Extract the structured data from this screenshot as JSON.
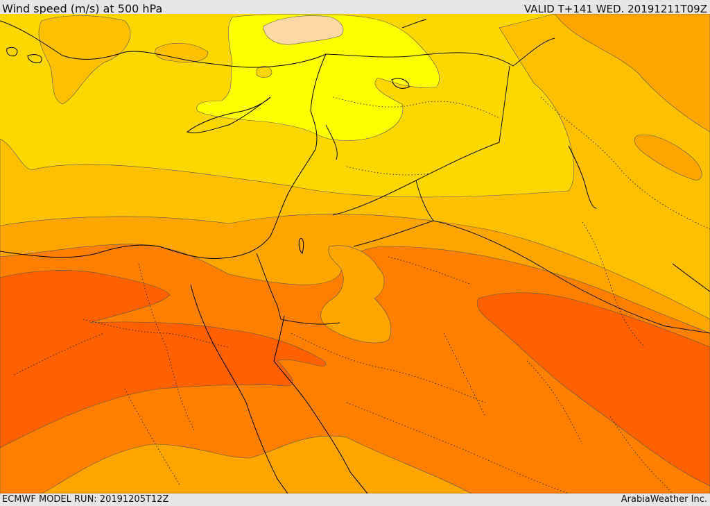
{
  "header": {
    "title": "Wind speed (m/s) at 500 hPa",
    "valid": "VALID T+141 WED. 20191211T09Z"
  },
  "footer": {
    "model_run": "ECMWF MODEL RUN: 20191205T12Z",
    "credit": "ArabiaWeather Inc."
  },
  "colors": {
    "band_pale": "#fcd9a4",
    "band_yellow": "#ffff00",
    "band_gold": "#ffd700",
    "band_amber": "#ffc000",
    "band_orange": "#ffa500",
    "band_dark_orange": "#ff8000",
    "band_red_orange": "#ff6000",
    "coastline": "#000000",
    "border": "#222222"
  }
}
